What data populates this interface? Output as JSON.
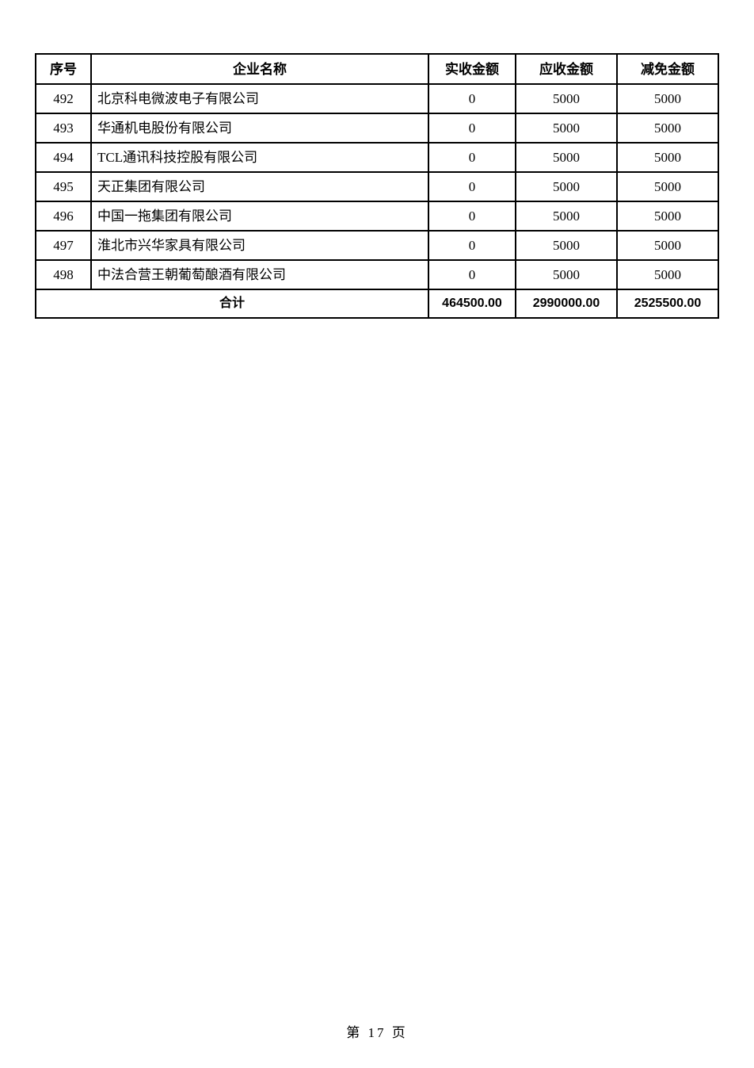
{
  "table": {
    "headers": {
      "no": "序号",
      "name": "企业名称",
      "received": "实收金额",
      "receivable": "应收金额",
      "reduced": "减免金额"
    },
    "rows": [
      {
        "no": "492",
        "name": "北京科电微波电子有限公司",
        "received": "0",
        "receivable": "5000",
        "reduced": "5000"
      },
      {
        "no": "493",
        "name": "华通机电股份有限公司",
        "received": "0",
        "receivable": "5000",
        "reduced": "5000"
      },
      {
        "no": "494",
        "name": "TCL通讯科技控股有限公司",
        "received": "0",
        "receivable": "5000",
        "reduced": "5000"
      },
      {
        "no": "495",
        "name": "天正集团有限公司",
        "received": "0",
        "receivable": "5000",
        "reduced": "5000"
      },
      {
        "no": "496",
        "name": "中国一拖集团有限公司",
        "received": "0",
        "receivable": "5000",
        "reduced": "5000"
      },
      {
        "no": "497",
        "name": "淮北市兴华家具有限公司",
        "received": "0",
        "receivable": "5000",
        "reduced": "5000"
      },
      {
        "no": "498",
        "name": "中法合营王朝葡萄酿酒有限公司",
        "received": "0",
        "receivable": "5000",
        "reduced": "5000"
      }
    ],
    "total": {
      "label": "合计",
      "received": "464500.00",
      "receivable": "2990000.00",
      "reduced": "2525500.00"
    }
  },
  "footer": {
    "page_label": "第 17 页"
  }
}
